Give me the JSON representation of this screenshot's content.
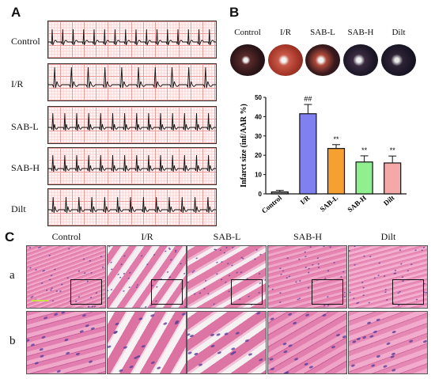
{
  "panels": {
    "a_label": "A",
    "b_label": "B",
    "c_label": "C"
  },
  "ecg": {
    "rows": [
      {
        "label": "Control"
      },
      {
        "label": "I/R"
      },
      {
        "label": "SAB-L"
      },
      {
        "label": "SAB-H"
      },
      {
        "label": "Dilt"
      }
    ]
  },
  "hearts": {
    "labels": [
      "Control",
      "I/R",
      "SAB-L",
      "SAB-H",
      "Dilt"
    ]
  },
  "chart_data": {
    "type": "bar",
    "categories": [
      "Control",
      "I/R",
      "SAB-L",
      "SAB-H",
      "Dilt"
    ],
    "values": [
      1,
      41.5,
      23.5,
      16.5,
      16
    ],
    "errors": [
      0.8,
      4.8,
      2.0,
      3.2,
      3.6
    ],
    "significance": [
      "",
      "##",
      "**",
      "**",
      "**"
    ],
    "colors": [
      "#8c8c8c",
      "#8080f0",
      "#f5a030",
      "#90f090",
      "#f5a8a8"
    ],
    "ylabel": "Infarct size (inf/AAR %)",
    "ylim": [
      0,
      50
    ],
    "yticks": [
      0,
      10,
      20,
      30,
      40,
      50
    ]
  },
  "histology": {
    "columns": [
      "Control",
      "I/R",
      "SAB-L",
      "SAB-H",
      "Dilt"
    ],
    "row_labels": [
      "a",
      "b"
    ]
  }
}
